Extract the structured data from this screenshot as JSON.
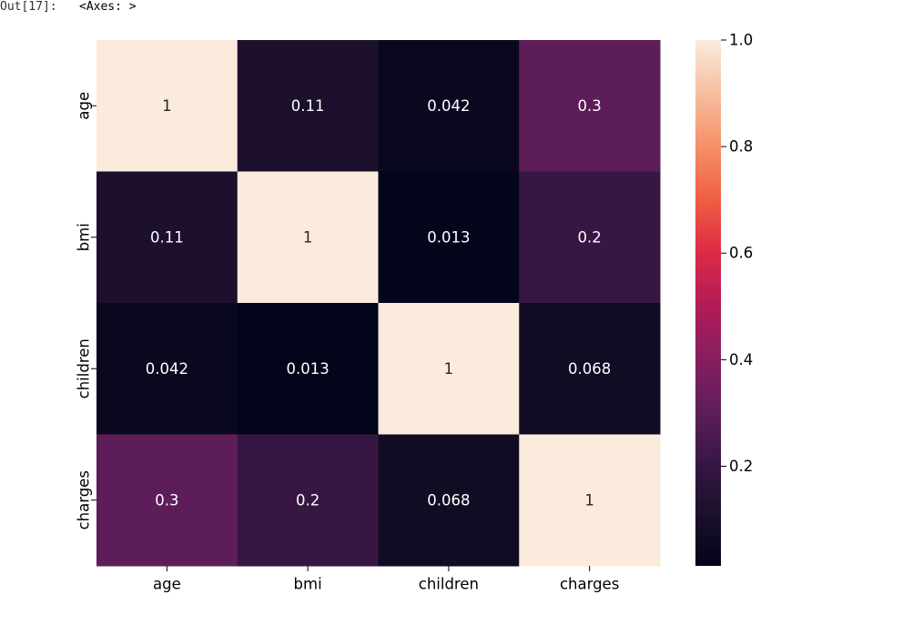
{
  "cell": {
    "prompt": "Out[17]:",
    "repr": "<Axes: >"
  },
  "chart_data": {
    "type": "heatmap",
    "colormap": "rocket",
    "rows": [
      "age",
      "bmi",
      "children",
      "charges"
    ],
    "columns": [
      "age",
      "bmi",
      "children",
      "charges"
    ],
    "values": [
      [
        1,
        0.11,
        0.042,
        0.3
      ],
      [
        0.11,
        1,
        0.013,
        0.2
      ],
      [
        0.042,
        0.013,
        1,
        0.068
      ],
      [
        0.3,
        0.2,
        0.068,
        1
      ]
    ],
    "annotations": [
      [
        "1",
        "0.11",
        "0.042",
        "0.3"
      ],
      [
        "0.11",
        "1",
        "0.013",
        "0.2"
      ],
      [
        "0.042",
        "0.013",
        "1",
        "0.068"
      ],
      [
        "0.3",
        "0.2",
        "0.068",
        "1"
      ]
    ],
    "colorbar": {
      "vmin": 0.013,
      "vmax": 1.0,
      "ticks": [
        0.2,
        0.4,
        0.6,
        0.8,
        1.0
      ],
      "tick_labels": [
        "0.2",
        "0.4",
        "0.6",
        "0.8",
        "1.0"
      ]
    }
  }
}
